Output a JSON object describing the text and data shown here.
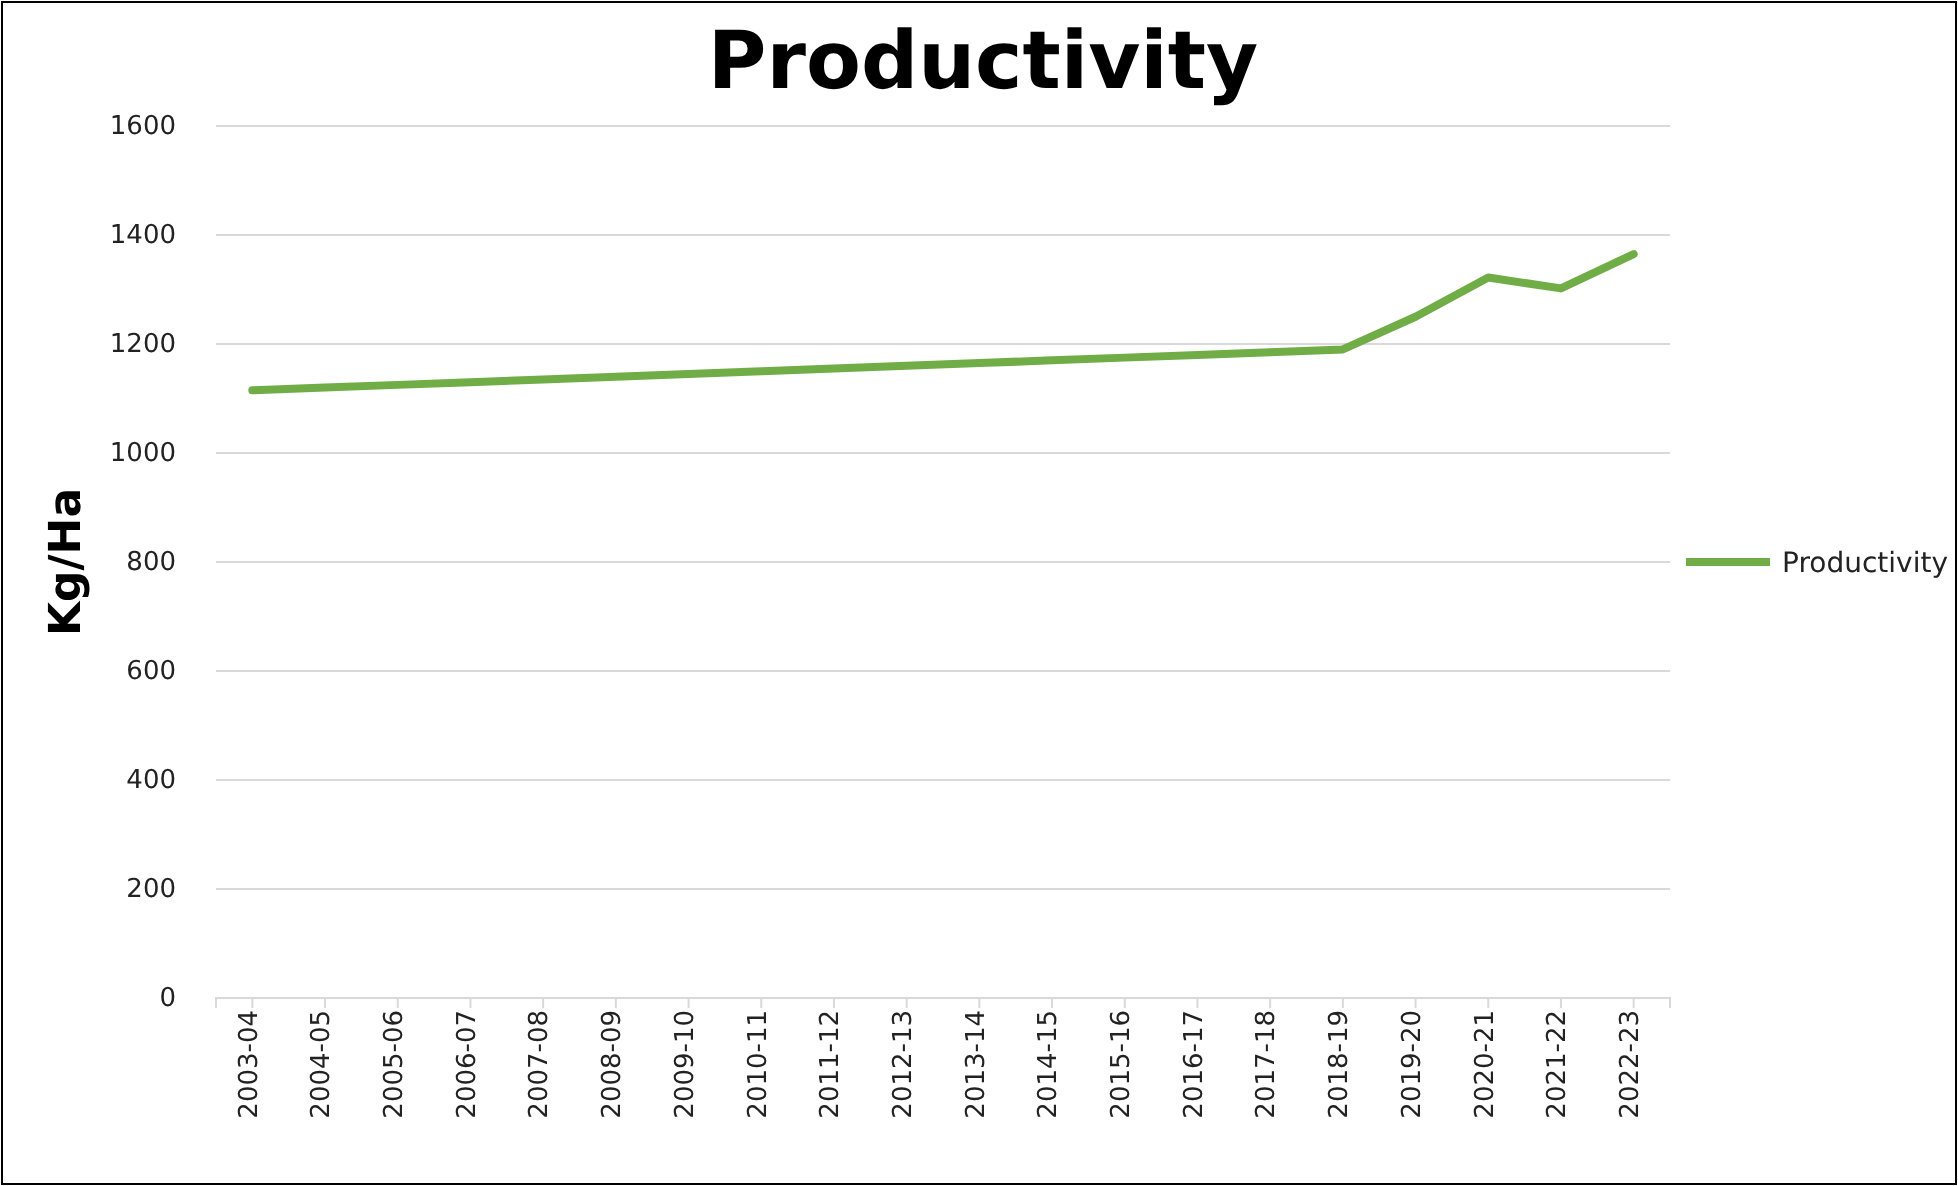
{
  "chart_data": {
    "type": "line",
    "title": "Productivity",
    "ylabel": "Kg/Ha",
    "categories": [
      "2003-04",
      "2004-05",
      "2005-06",
      "2006-07",
      "2007-08",
      "2008-09",
      "2009-10",
      "2010-11",
      "2011-12",
      "2012-13",
      "2013-14",
      "2014-15",
      "2015-16",
      "2016-17",
      "2017-18",
      "2018-19",
      "2019-20",
      "2020-21",
      "2021-22",
      "2022-23"
    ],
    "series": [
      {
        "name": "Productivity",
        "color": "#70ad47",
        "values": [
          1115,
          1120,
          1125,
          1130,
          1135,
          1140,
          1145,
          1150,
          1155,
          1160,
          1165,
          1170,
          1175,
          1180,
          1185,
          1190,
          1250,
          1322,
          1302,
          1365
        ]
      }
    ],
    "ylim": [
      0,
      1600
    ],
    "yticks": [
      0,
      200,
      400,
      600,
      800,
      1000,
      1200,
      1400,
      1600
    ],
    "grid": "y",
    "legend": "right",
    "marker": "none",
    "line_style": "solid"
  }
}
